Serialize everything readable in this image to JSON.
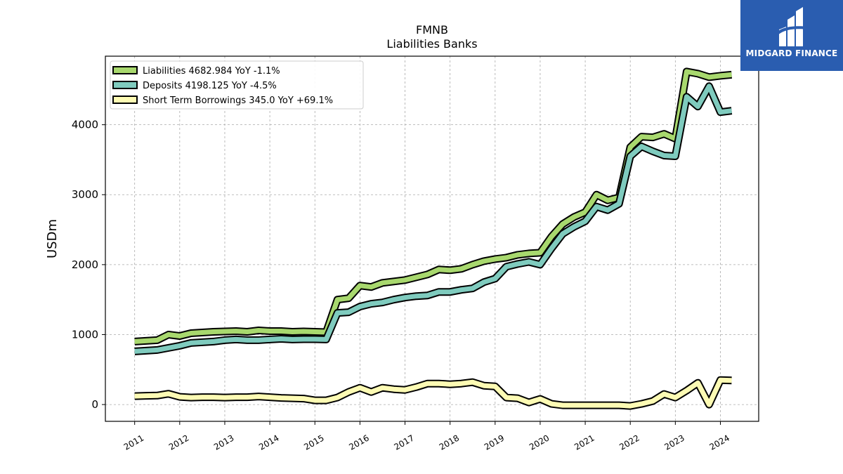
{
  "logo": {
    "text": "MIDGARD FINANCE",
    "icon": "midgard-logo-icon",
    "bg": "#2a5db0"
  },
  "chart_data": {
    "type": "line",
    "title": "FMNB",
    "subtitle": "Liabilities Banks",
    "xlabel": "",
    "ylabel": "USDm",
    "xlim": [
      2010.35,
      2024.85
    ],
    "ylim": [
      -240,
      4980
    ],
    "xticks": [
      "2011",
      "2012",
      "2013",
      "2014",
      "2015",
      "2016",
      "2017",
      "2018",
      "2019",
      "2020",
      "2021",
      "2022",
      "2023",
      "2024"
    ],
    "yticks": [
      0,
      1000,
      2000,
      3000,
      4000
    ],
    "grid": true,
    "legend_position": "top-left",
    "x": [
      2011.0,
      2011.25,
      2011.5,
      2011.75,
      2012.0,
      2012.25,
      2012.5,
      2012.75,
      2013.0,
      2013.25,
      2013.5,
      2013.75,
      2014.0,
      2014.25,
      2014.5,
      2014.75,
      2015.0,
      2015.25,
      2015.5,
      2015.75,
      2016.0,
      2016.25,
      2016.5,
      2016.75,
      2017.0,
      2017.25,
      2017.5,
      2017.75,
      2018.0,
      2018.25,
      2018.5,
      2018.75,
      2019.0,
      2019.25,
      2019.5,
      2019.75,
      2020.0,
      2020.25,
      2020.5,
      2020.75,
      2021.0,
      2021.25,
      2021.5,
      2021.75,
      2022.0,
      2022.25,
      2022.5,
      2022.75,
      2023.0,
      2023.25,
      2023.5,
      2023.75,
      2024.0,
      2024.25
    ],
    "series": [
      {
        "name": "Liabilities  4682.984 YoY -1.1%",
        "color": "#a8d86e",
        "values": [
          900,
          910,
          920,
          1000,
          980,
          1020,
          1030,
          1040,
          1045,
          1050,
          1040,
          1060,
          1050,
          1050,
          1040,
          1045,
          1040,
          1035,
          1500,
          1520,
          1700,
          1680,
          1740,
          1760,
          1780,
          1820,
          1860,
          1930,
          1920,
          1940,
          2000,
          2050,
          2080,
          2100,
          2140,
          2160,
          2170,
          2400,
          2580,
          2680,
          2750,
          3000,
          2920,
          2960,
          3680,
          3830,
          3820,
          3870,
          3800,
          4760,
          4730,
          4680,
          4700,
          4715
        ]
      },
      {
        "name": "Deposits  4198.125 YoY -4.5%",
        "color": "#7fcbbe",
        "values": [
          760,
          770,
          780,
          810,
          840,
          880,
          890,
          900,
          920,
          930,
          920,
          920,
          930,
          940,
          930,
          935,
          935,
          930,
          1310,
          1320,
          1400,
          1440,
          1460,
          1500,
          1530,
          1550,
          1560,
          1610,
          1610,
          1640,
          1660,
          1750,
          1800,
          1970,
          2010,
          2040,
          2000,
          2230,
          2440,
          2540,
          2620,
          2830,
          2780,
          2870,
          3550,
          3690,
          3620,
          3560,
          3550,
          4400,
          4260,
          4550,
          4180,
          4200
        ]
      },
      {
        "name": "Short Term Borrowings  345.0 YoY +69.1%",
        "color": "#fdfbb4",
        "values": [
          120,
          125,
          128,
          155,
          110,
          100,
          105,
          105,
          100,
          105,
          105,
          115,
          105,
          95,
          90,
          85,
          60,
          60,
          100,
          180,
          240,
          180,
          240,
          220,
          210,
          250,
          300,
          300,
          290,
          300,
          320,
          270,
          260,
          100,
          90,
          30,
          80,
          10,
          -10,
          -10,
          -10,
          -10,
          -10,
          -10,
          -20,
          10,
          50,
          150,
          100,
          200,
          310,
          0,
          350,
          345
        ]
      }
    ]
  }
}
